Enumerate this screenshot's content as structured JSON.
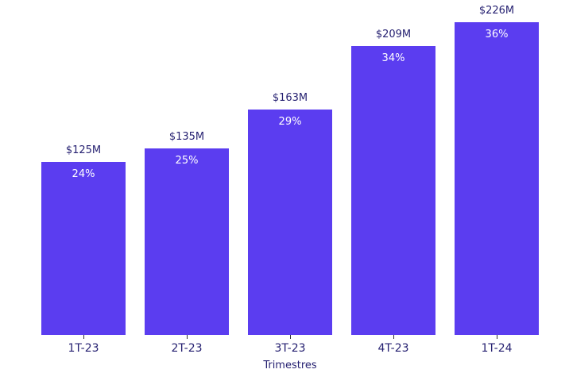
{
  "chart_data": {
    "type": "bar",
    "categories": [
      "1T-23",
      "2T-23",
      "3T-23",
      "4T-23",
      "1T-24"
    ],
    "values": [
      125,
      135,
      163,
      209,
      226
    ],
    "value_labels": [
      "$125M",
      "$135M",
      "$163M",
      "$209M",
      "$226M"
    ],
    "pct_labels": [
      "24%",
      "25%",
      "29%",
      "34%",
      "36%"
    ],
    "title": "",
    "xlabel": "Trimestres",
    "ylabel": "",
    "ylim": [
      0,
      242
    ],
    "grid": false,
    "legend": "none",
    "bar_color": "#5b3df0",
    "label_color": "#241f70",
    "pct_text_color": "#ffffff",
    "background_color": "#ffffff"
  }
}
